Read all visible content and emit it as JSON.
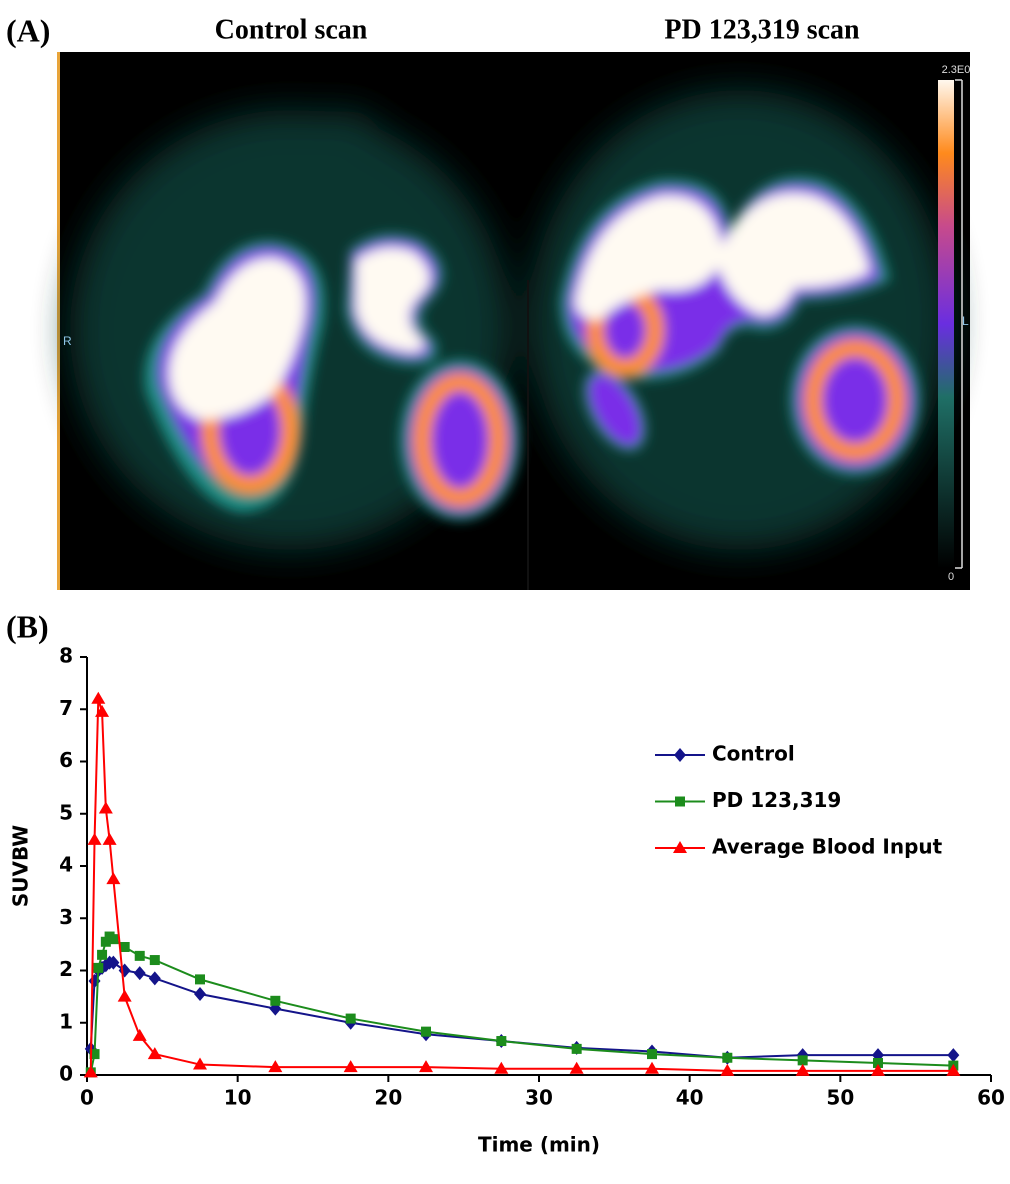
{
  "panel_a": {
    "label": "(A)",
    "titles": [
      "Control scan",
      "PD 123,319 scan"
    ],
    "colorbar_max": "2.3E0",
    "colorbar_min": "0",
    "side_left": "R",
    "side_right": "L"
  },
  "chart_data": {
    "type": "line",
    "label": "(B)",
    "xlabel": "Time (min)",
    "ylabel": "SUVBW",
    "x": [
      0.25,
      0.5,
      0.75,
      1.0,
      1.25,
      1.5,
      1.75,
      2.5,
      3.5,
      4.5,
      7.5,
      12.5,
      17.5,
      22.5,
      27.5,
      32.5,
      37.5,
      42.5,
      47.5,
      52.5,
      57.5
    ],
    "series": [
      {
        "name": "Control",
        "color": "#14148a",
        "marker": "diamond",
        "values": [
          0.5,
          1.8,
          2.0,
          2.05,
          2.1,
          2.15,
          2.15,
          2.0,
          1.95,
          1.85,
          1.55,
          1.27,
          1.0,
          0.78,
          0.65,
          0.52,
          0.45,
          0.33,
          0.38,
          0.38,
          0.38
        ]
      },
      {
        "name": "PD 123,319",
        "color": "#1c8c1c",
        "marker": "square",
        "values": [
          0.05,
          0.4,
          2.05,
          2.3,
          2.55,
          2.65,
          2.6,
          2.45,
          2.28,
          2.2,
          1.83,
          1.42,
          1.08,
          0.83,
          0.65,
          0.5,
          0.4,
          0.33,
          0.28,
          0.23,
          0.18
        ]
      },
      {
        "name": "Average Blood Input",
        "color": "#ff0000",
        "marker": "triangle",
        "values": [
          0.05,
          4.5,
          7.2,
          6.95,
          5.1,
          4.5,
          3.75,
          1.5,
          0.75,
          0.4,
          0.2,
          0.15,
          0.15,
          0.15,
          0.12,
          0.12,
          0.12,
          0.08,
          0.08,
          0.08,
          0.08
        ]
      }
    ],
    "xlim": [
      0,
      60
    ],
    "xticks": [
      0,
      10,
      20,
      30,
      40,
      50,
      60
    ],
    "ylim": [
      0,
      8
    ],
    "yticks": [
      0,
      1,
      2,
      3,
      4,
      5,
      6,
      7,
      8
    ],
    "grid": false,
    "legend": "right"
  }
}
